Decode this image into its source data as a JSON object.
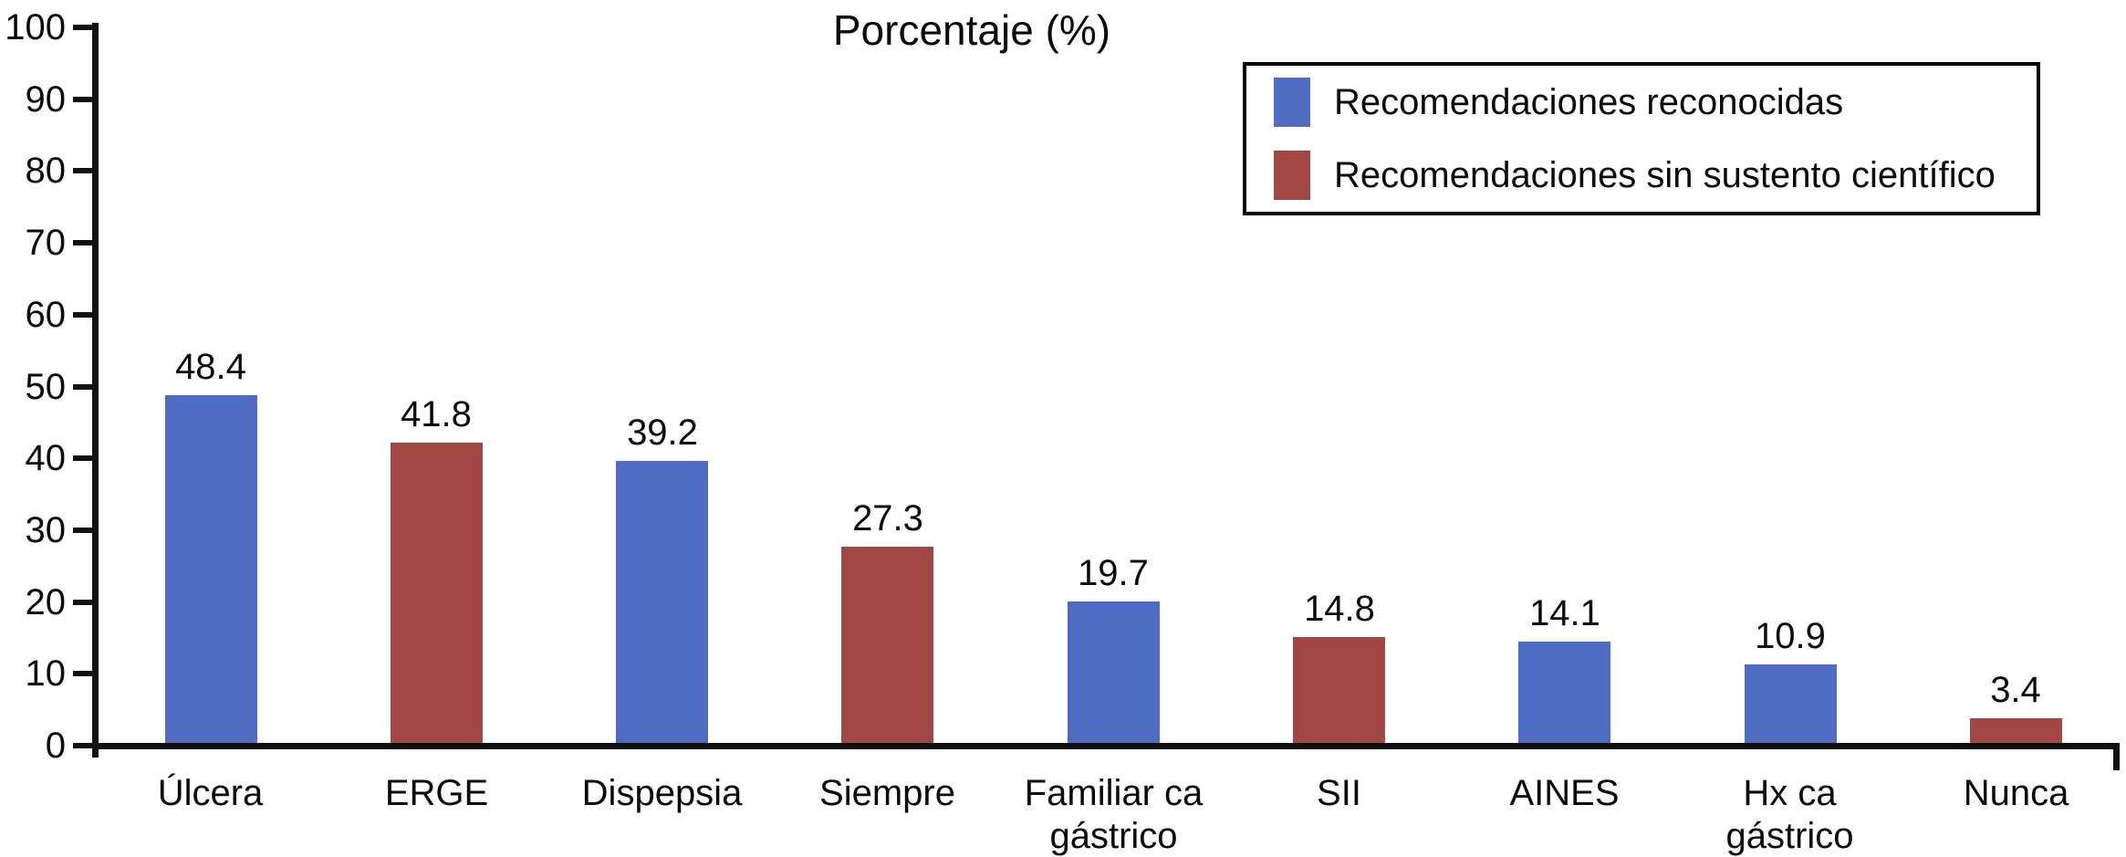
{
  "chart_data": {
    "type": "bar",
    "title": "Porcentaje (%)",
    "xlabel": "",
    "ylabel": "",
    "ylim": [
      0,
      100
    ],
    "yticks": [
      0,
      10,
      20,
      30,
      40,
      50,
      60,
      70,
      80,
      90,
      100
    ],
    "grid": false,
    "legend_position": "top-right",
    "categories": [
      "Úlcera",
      "ERGE",
      "Dispepsia",
      "Siempre",
      "Familiar ca\ngástrico",
      "SII",
      "AINES",
      "Hx ca\ngástrico",
      "Nunca"
    ],
    "values": [
      48.4,
      41.8,
      39.2,
      27.3,
      19.7,
      14.8,
      14.1,
      10.9,
      3.4
    ],
    "bar_series_index": [
      0,
      1,
      0,
      1,
      0,
      1,
      0,
      0,
      1
    ],
    "series": [
      {
        "name": "Recomendaciones reconocidas",
        "color": "#506cc2"
      },
      {
        "name": "Recomendaciones sin sustento científico",
        "color": "#a14846"
      }
    ],
    "colors": {
      "axis": "#111111",
      "text": "#0a0a0a",
      "background": "#ffffff"
    }
  }
}
